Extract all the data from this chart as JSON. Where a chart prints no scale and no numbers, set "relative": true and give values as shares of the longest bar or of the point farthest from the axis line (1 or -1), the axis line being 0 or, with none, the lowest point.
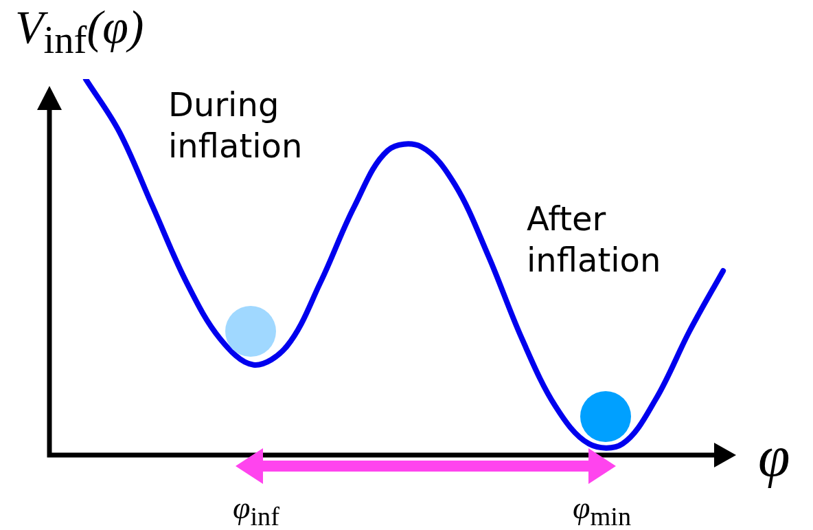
{
  "chart_data": {
    "type": "line",
    "relative": true,
    "marker": "none",
    "color": "#0000ee",
    "ylabel": "V$_{inf}$(φ)",
    "xlabel": "φ",
    "categories": [
      null,
      null,
      null,
      null,
      null,
      null,
      null,
      null,
      null,
      null,
      null,
      null,
      null,
      null,
      null,
      null,
      null,
      null,
      null,
      null,
      null,
      null
    ],
    "values": [
      null,
      1,
      0.86,
      0.66,
      0.46,
      0.31,
      0.24,
      0.29,
      0.46,
      0.66,
      0.81,
      0.82,
      0.72,
      0.53,
      0.31,
      0.13,
      0.03,
      0.03,
      0.15,
      0.33,
      0.49,
      null
    ],
    "annotations": [
      "During inflation",
      "After inflation",
      "φ$_{inf}$",
      "φ$_{min}$"
    ]
  }
}
